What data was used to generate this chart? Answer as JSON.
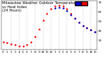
{
  "title": "Milwaukee Weather Outdoor Temperature\nvs Heat Index\n(24 Hours)",
  "hours": [
    0,
    1,
    2,
    3,
    4,
    5,
    6,
    7,
    8,
    9,
    10,
    11,
    12,
    13,
    14,
    15,
    16,
    17,
    18,
    19,
    20,
    21,
    22,
    23
  ],
  "temp": [
    28,
    27,
    26,
    25,
    24,
    24,
    25,
    28,
    34,
    42,
    51,
    58,
    63,
    66,
    67,
    66,
    63,
    58,
    53,
    49,
    45,
    43,
    41,
    39
  ],
  "heat_index": [
    null,
    null,
    null,
    null,
    null,
    null,
    null,
    null,
    null,
    null,
    null,
    null,
    null,
    64,
    65,
    64,
    61,
    57,
    53,
    49,
    45,
    43,
    41,
    39
  ],
  "temp_color": "#ff0000",
  "heat_index_color": "#0000cc",
  "ylim": [
    20,
    72
  ],
  "xlim": [
    -0.5,
    23.5
  ],
  "yticks": [
    30,
    40,
    50,
    60,
    70
  ],
  "xtick_labels": [
    "0",
    "1",
    "2",
    "3",
    "4",
    "5",
    "6",
    "7",
    "8",
    "9",
    "10",
    "11",
    "12",
    "1",
    "2",
    "3",
    "4",
    "5",
    "6",
    "7",
    "8",
    "9",
    "10",
    "11"
  ],
  "xticks": [
    0,
    1,
    2,
    3,
    4,
    5,
    6,
    7,
    8,
    9,
    10,
    11,
    12,
    13,
    14,
    15,
    16,
    17,
    18,
    19,
    20,
    21,
    22,
    23
  ],
  "bg_color": "#ffffff",
  "plot_bg_color": "#ffffff",
  "legend_temp_color": "#ff0000",
  "legend_hi_color": "#0000cc",
  "title_fontsize": 3.8,
  "tick_fontsize": 3.2,
  "marker_size": 1.8,
  "grid_color": "#aaaaaa",
  "grid_hours": [
    2,
    4,
    6,
    8,
    10,
    12,
    14,
    16,
    18,
    20,
    22
  ]
}
